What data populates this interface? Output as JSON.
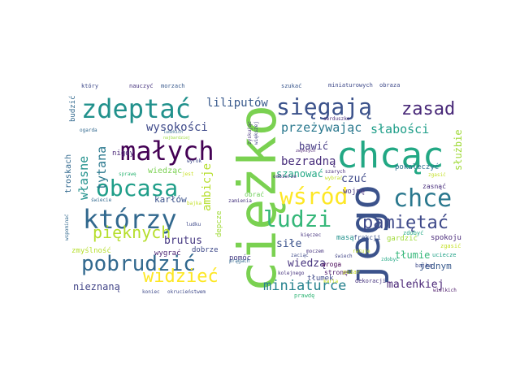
{
  "words": [
    {
      "text": "ciężko",
      "color": "#7ad151"
    },
    {
      "text": "jego",
      "color": "#3b528b"
    },
    {
      "text": "chcąc",
      "color": "#22a884"
    },
    {
      "text": "sięgają",
      "color": "#3b528b"
    },
    {
      "text": "zdeptać",
      "color": "#21918c"
    },
    {
      "text": "małych",
      "color": "#440154"
    },
    {
      "text": "obcasa",
      "color": "#1f9e89"
    },
    {
      "text": "którzy",
      "color": "#31688e"
    },
    {
      "text": "wśród",
      "color": "#fde725"
    },
    {
      "text": "ludzi",
      "color": "#35b779"
    },
    {
      "text": "chce",
      "color": "#2a788e"
    },
    {
      "text": "pobrudzić",
      "color": "#31688e"
    },
    {
      "text": "pamiętać",
      "color": "#3e4989"
    },
    {
      "text": "zasad",
      "color": "#482878"
    },
    {
      "text": "pięknych",
      "color": "#b5de2b"
    },
    {
      "text": "widzieć",
      "color": "#fde725"
    },
    {
      "text": "miniaturce",
      "color": "#26828e"
    },
    {
      "text": "przeżywając",
      "color": "#2a788e"
    },
    {
      "text": "słabości",
      "color": "#1f9e89"
    },
    {
      "text": "wysokości",
      "color": "#3e4989"
    },
    {
      "text": "tytana",
      "color": "#2a788e"
    },
    {
      "text": "własne",
      "color": "#21918c"
    },
    {
      "text": "liliputów",
      "color": "#38598c"
    },
    {
      "text": "bezradną",
      "color": "#472d7b"
    },
    {
      "text": "ambicje",
      "color": "#b5de2b"
    },
    {
      "text": "bawić",
      "color": "#443983"
    },
    {
      "text": "szanować",
      "color": "#22a884"
    },
    {
      "text": "czuć",
      "color": "#3e4989"
    },
    {
      "text": "służbie",
      "color": "#a0da39"
    },
    {
      "text": "tłumie",
      "color": "#35b779"
    },
    {
      "text": "siłe",
      "color": "#3b528b"
    },
    {
      "text": "wiedzą",
      "color": "#46337e"
    },
    {
      "text": "maleńkiej",
      "color": "#482475"
    },
    {
      "text": "nieznaną",
      "color": "#414487"
    },
    {
      "text": "brutus",
      "color": "#453781"
    },
    {
      "text": "karłów",
      "color": "#3b528b"
    },
    {
      "text": "jednym",
      "color": "#38598c"
    },
    {
      "text": "wiedząc",
      "color": "#7ad151"
    },
    {
      "text": "spokoju",
      "color": "#482878"
    },
    {
      "text": "wojnę",
      "color": "#46337e"
    },
    {
      "text": "zasnąć",
      "color": "#472d7b"
    },
    {
      "text": "pokaleczyć",
      "color": "#2c728e"
    },
    {
      "text": "gardzić",
      "color": "#a0da39"
    },
    {
      "text": "depcze",
      "color": "#a0da39"
    },
    {
      "text": "zmyślność",
      "color": "#b5de2b"
    },
    {
      "text": "wygrać",
      "color": "#481f70"
    },
    {
      "text": "troskach",
      "color": "#31688e"
    },
    {
      "text": "nigdy",
      "color": "#482475"
    },
    {
      "text": "dobrze",
      "color": "#3e4989"
    },
    {
      "text": "pomóc",
      "color": "#443983"
    },
    {
      "text": "tłumek",
      "color": "#3e4989"
    },
    {
      "text": "budzić",
      "color": "#31688e"
    },
    {
      "text": "obrać",
      "color": "#6ece58"
    },
    {
      "text": "masą",
      "color": "#21918c"
    },
    {
      "text": "frakcji",
      "color": "#3b528b"
    },
    {
      "text": "dekoracji",
      "color": "#46337e"
    },
    {
      "text": "prawdę",
      "color": "#35b779"
    },
    {
      "text": "zdobyć",
      "color": "#22a884"
    },
    {
      "text": "uciecze",
      "color": "#1fa187"
    },
    {
      "text": "zgasić",
      "color": "#c2df23"
    },
    {
      "text": "wroga",
      "color": "#440154"
    },
    {
      "text": "stronę",
      "color": "#471164"
    },
    {
      "text": "pożar",
      "color": "#c8e020"
    },
    {
      "text": "bajką",
      "color": "#3e4989"
    },
    {
      "text": "wielkich",
      "color": "#471365"
    },
    {
      "text": "który",
      "color": "#3e4989"
    },
    {
      "text": "nauczyć",
      "color": "#46337e"
    },
    {
      "text": "morzach",
      "color": "#38598c"
    },
    {
      "text": "szukać",
      "color": "#39568c"
    },
    {
      "text": "miniaturowych",
      "color": "#3e4989"
    },
    {
      "text": "obraza",
      "color": "#3e4989"
    },
    {
      "text": "serduszko",
      "color": "#472c7a"
    },
    {
      "text": "ogarda",
      "color": "#31688e"
    },
    {
      "text": "najbardziej",
      "color": "#9bd93c"
    },
    {
      "text": "zyskując",
      "color": "#46337e"
    },
    {
      "text": "ludzkich",
      "color": "#31688e"
    },
    {
      "text": "większej",
      "color": "#414487"
    },
    {
      "text": "zwykłych",
      "color": "#481f70"
    },
    {
      "text": "sprawę",
      "color": "#35b779"
    },
    {
      "text": "jest",
      "color": "#c8e020"
    },
    {
      "text": "wyrok",
      "color": "#3e4989"
    },
    {
      "text": "odbierze",
      "color": "#46337e"
    },
    {
      "text": "szarych",
      "color": "#472c7a"
    },
    {
      "text": "wybrać",
      "color": "#c2df23"
    },
    {
      "text": "zgasić",
      "color": "#c2df23"
    },
    {
      "text": "świecie",
      "color": "#31688e"
    },
    {
      "text": "bajka",
      "color": "#c2df23"
    },
    {
      "text": "zamienia",
      "color": "#46337e"
    },
    {
      "text": "wspominać",
      "color": "#31688e"
    },
    {
      "text": "ludku",
      "color": "#3e4989"
    },
    {
      "text": "kięczec",
      "color": "#46337e"
    },
    {
      "text": "prągach",
      "color": "#31688e"
    },
    {
      "text": "zaciąć",
      "color": "#3e4989"
    },
    {
      "text": "koniec",
      "color": "#3e4989"
    },
    {
      "text": "okrucieństwem",
      "color": "#3e4989"
    },
    {
      "text": "kolejnego",
      "color": "#46337e"
    },
    {
      "text": "moczem",
      "color": "#46337e"
    },
    {
      "text": "świech",
      "color": "#414487"
    },
    {
      "text": "ratuje",
      "color": "#c2df23"
    },
    {
      "text": "karia",
      "color": "#c8e020"
    },
    {
      "text": "zdobyć",
      "color": "#22a884"
    }
  ]
}
